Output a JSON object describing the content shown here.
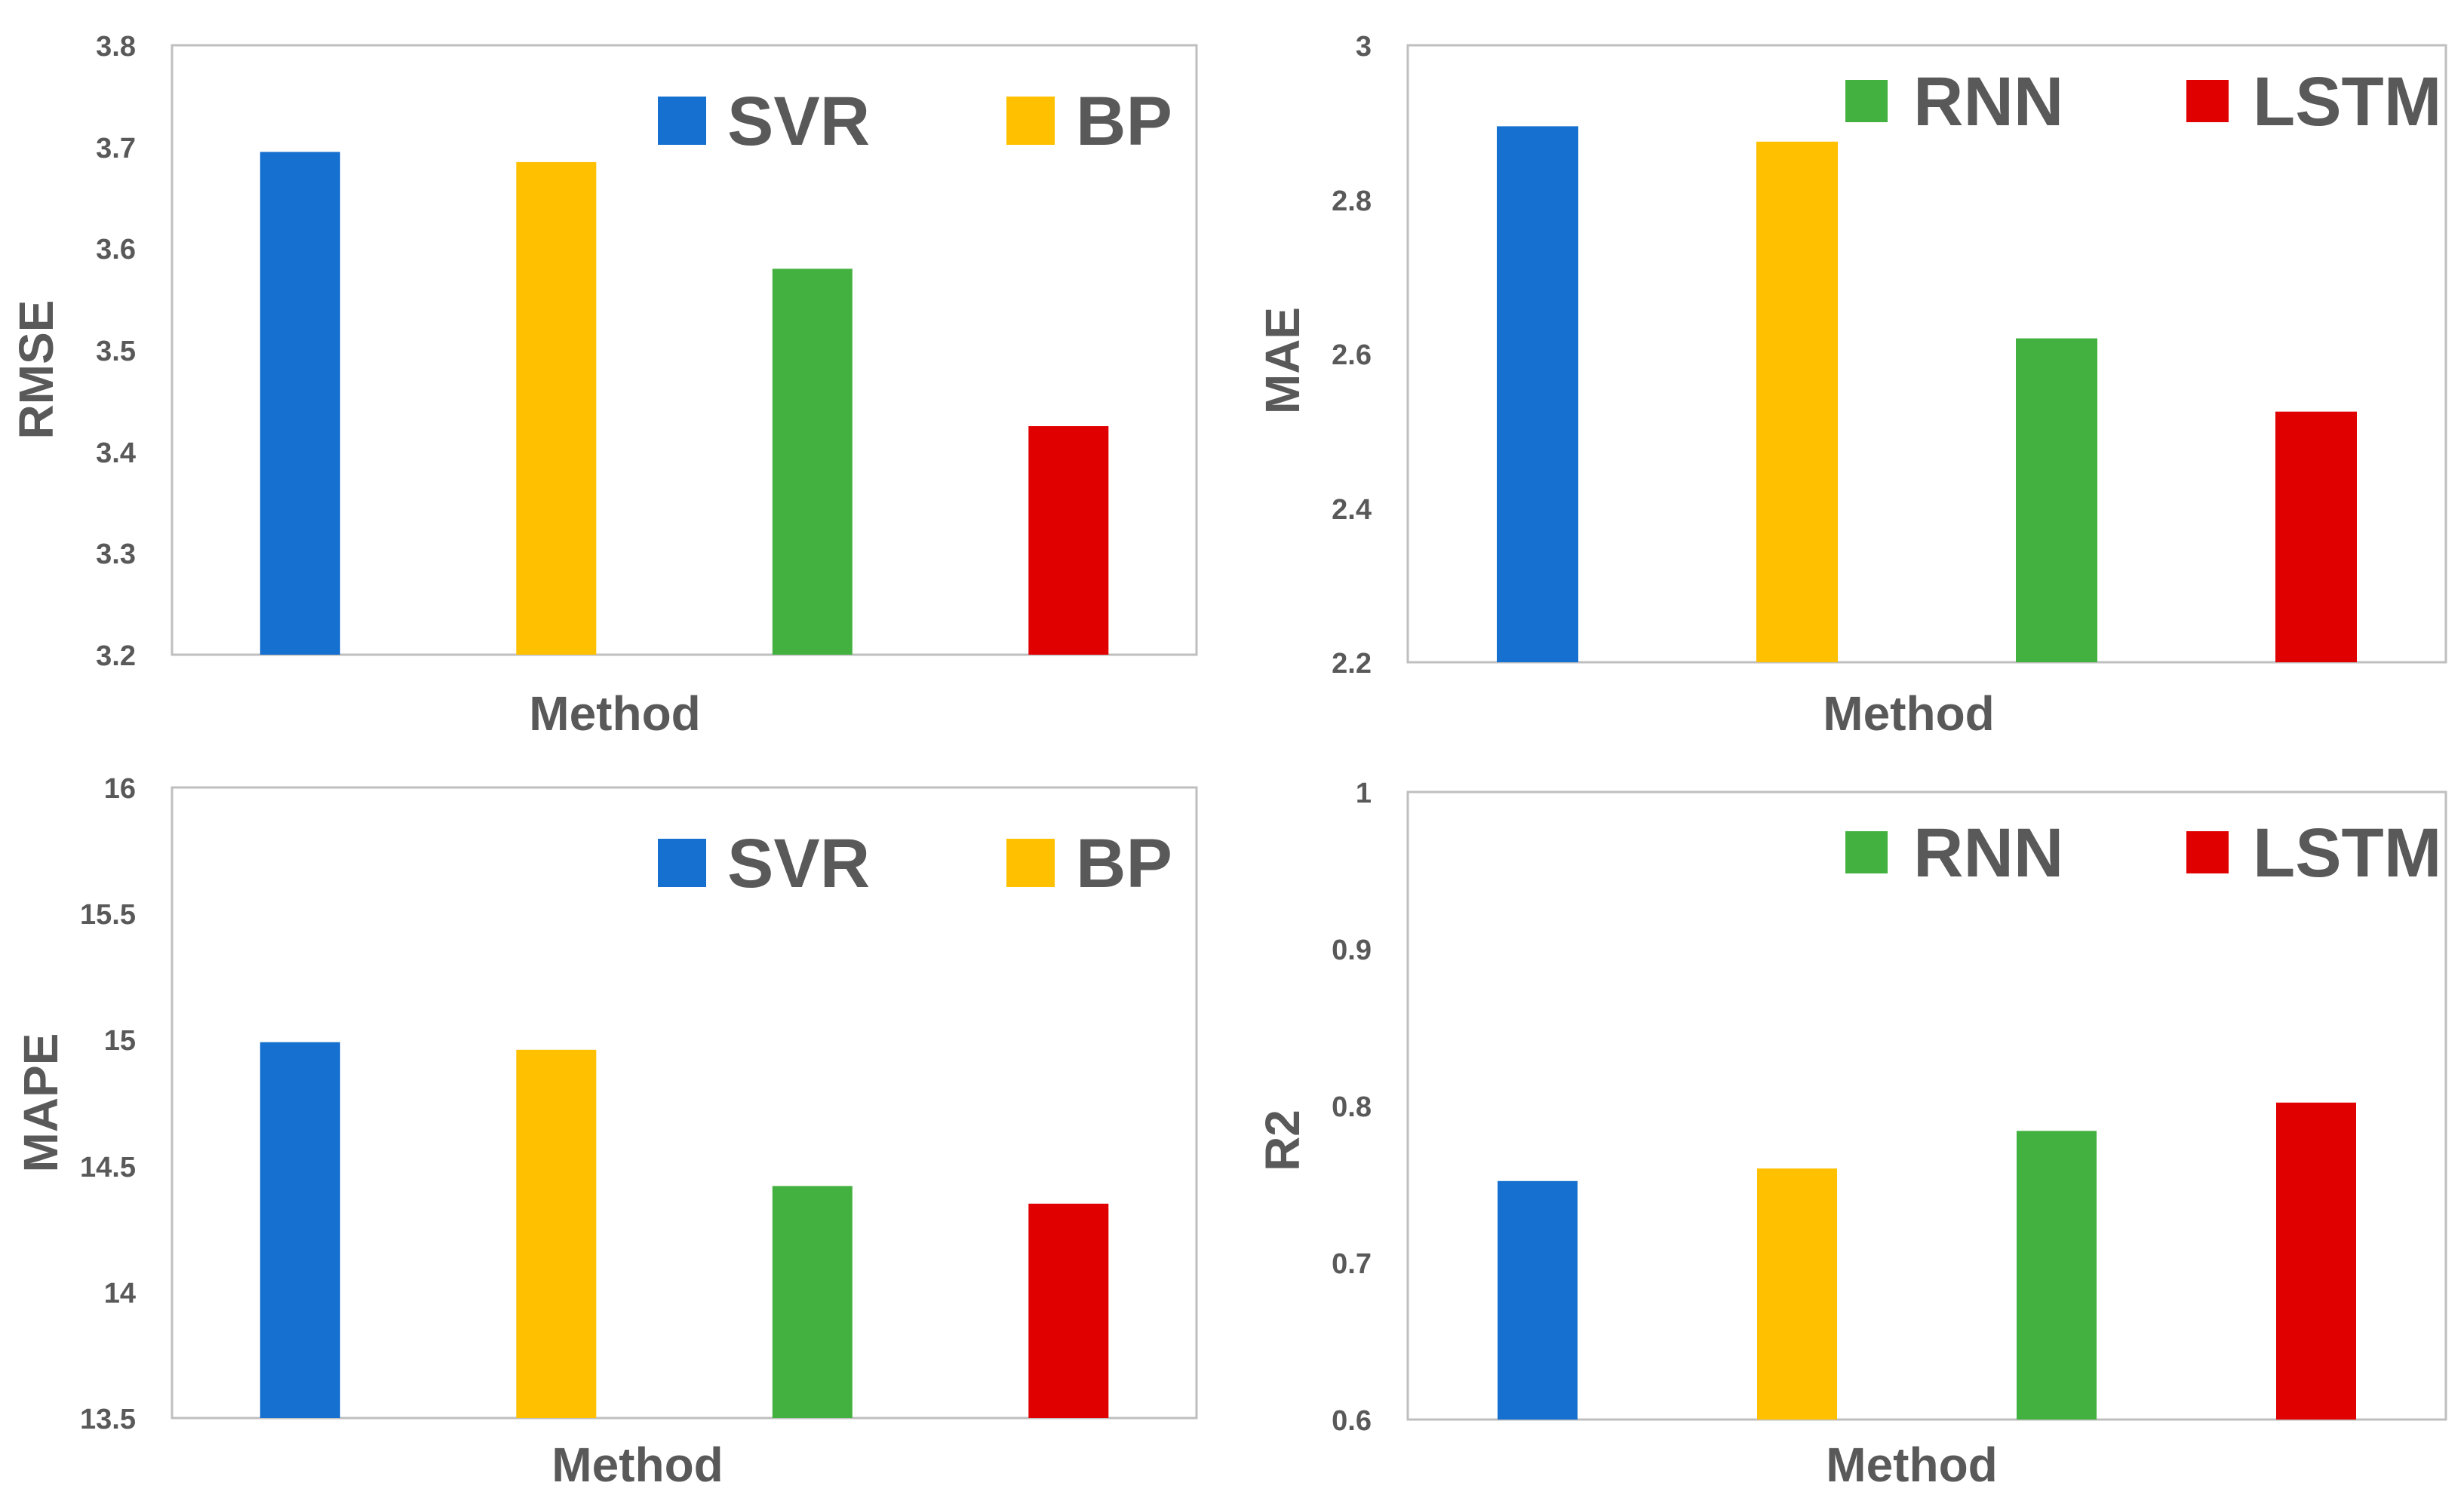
{
  "colors": {
    "SVR": "#1570cf",
    "BP": "#ffc000",
    "RNN": "#43b13f",
    "LSTM": "#e00000"
  },
  "chart_data": [
    {
      "type": "bar",
      "id": "rmse",
      "categories": [
        "SVR",
        "BP",
        "RNN",
        "LSTM"
      ],
      "values": [
        3.695,
        3.685,
        3.58,
        3.425
      ],
      "xlabel": "Method",
      "ylabel": "RMSE",
      "ylim": [
        3.2,
        3.8
      ],
      "yticks": [
        "3.2",
        "3.3",
        "3.4",
        "3.5",
        "3.6",
        "3.7",
        "3.8"
      ],
      "legend": [
        "SVR",
        "BP"
      ],
      "legend_position": "top-right",
      "grid": false
    },
    {
      "type": "bar",
      "id": "mae",
      "categories": [
        "SVR",
        "BP",
        "RNN",
        "LSTM"
      ],
      "values": [
        2.895,
        2.875,
        2.62,
        2.525
      ],
      "xlabel": "Method",
      "ylabel": "MAE",
      "ylim": [
        2.2,
        3.0
      ],
      "yticks": [
        "2.2",
        "2.4",
        "2.6",
        "2.8",
        "3"
      ],
      "legend": [
        "RNN",
        "LSTM"
      ],
      "legend_position": "top-right",
      "grid": false
    },
    {
      "type": "bar",
      "id": "mape",
      "categories": [
        "SVR",
        "BP",
        "RNN",
        "LSTM"
      ],
      "values": [
        14.99,
        14.96,
        14.42,
        14.35
      ],
      "xlabel": "Method",
      "ylabel": "MAPE",
      "ylim": [
        13.5,
        16
      ],
      "yticks": [
        "13.5",
        "14",
        "14.5",
        "15",
        "15.5",
        "16"
      ],
      "legend": [
        "SVR",
        "BP"
      ],
      "legend_position": "top-right",
      "grid": false
    },
    {
      "type": "bar",
      "id": "r2",
      "categories": [
        "SVR",
        "BP",
        "RNN",
        "LSTM"
      ],
      "values": [
        0.752,
        0.76,
        0.784,
        0.802
      ],
      "xlabel": "Method",
      "ylabel": "R2",
      "ylim": [
        0.6,
        1.0
      ],
      "yticks": [
        "0.6",
        "0.7",
        "0.8",
        "0.9",
        "1"
      ],
      "legend": [
        "RNN",
        "LSTM"
      ],
      "legend_position": "top-right",
      "grid": false
    }
  ]
}
